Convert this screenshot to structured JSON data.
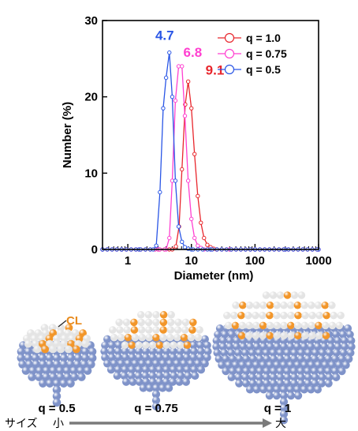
{
  "chart_data": {
    "type": "line",
    "xlabel": "Diameter (nm)",
    "ylabel": "Number (%)",
    "xscale": "log",
    "xlim": [
      0.4,
      1000
    ],
    "ylim": [
      0,
      30
    ],
    "x_ticks": [
      "1",
      "10",
      "100",
      "1000"
    ],
    "y_ticks": [
      "0",
      "10",
      "20",
      "30"
    ],
    "legend_position": "top-right",
    "series": [
      {
        "name": "q = 1.0",
        "color": "#e8262c",
        "peak_label": "9.1",
        "x": [
          0.4,
          0.8,
          1.5,
          3,
          5,
          5.7,
          6.4,
          7.1,
          8.0,
          8.9,
          10.0,
          11.2,
          12.6,
          14.1,
          15.8,
          17.8,
          20,
          22.4,
          25,
          40,
          100,
          300,
          1000
        ],
        "y": [
          0,
          0,
          0,
          0,
          0,
          0.4,
          3,
          10.5,
          19,
          22,
          18.5,
          12.5,
          7,
          3.5,
          1.5,
          0.6,
          0.3,
          0.1,
          0,
          0,
          0,
          0,
          0
        ]
      },
      {
        "name": "q = 0.75",
        "color": "#ff3fd0",
        "peak_label": "6.8",
        "x": [
          0.4,
          0.8,
          1.5,
          3,
          4.0,
          4.5,
          5.0,
          5.6,
          6.3,
          7.1,
          7.9,
          8.9,
          10.0,
          11.2,
          12.6,
          14.1,
          15.8,
          20,
          40,
          100,
          300,
          1000
        ],
        "y": [
          0,
          0,
          0,
          0,
          0,
          1.5,
          9,
          19.5,
          24,
          24,
          17.5,
          9,
          4,
          1.5,
          0.5,
          0.2,
          0,
          0,
          0,
          0,
          0,
          0
        ]
      },
      {
        "name": "q = 0.5",
        "color": "#2a56e6",
        "peak_label": "4.7",
        "x": [
          0.4,
          0.8,
          1.5,
          2.5,
          2.8,
          3.2,
          3.6,
          4.0,
          4.5,
          5.0,
          5.6,
          6.3,
          7.1,
          7.9,
          8.9,
          10,
          20,
          100,
          300,
          1000
        ],
        "y": [
          0,
          0,
          0,
          0,
          0.5,
          7.5,
          18.5,
          22.5,
          25.8,
          20,
          9,
          3,
          1,
          0.3,
          0.1,
          0,
          0,
          0,
          0,
          0
        ]
      }
    ]
  },
  "annotations": {
    "cl_label": "CL",
    "captions": [
      "q = 0.5",
      "q = 0.75",
      "q = 1"
    ],
    "size_label": "サイズ",
    "small_label": "小",
    "large_label": "大"
  },
  "colors": {
    "ball_blue": "#7f93c9",
    "ball_white": "#e4e4e4",
    "ball_orange": "#f2962a",
    "arrow_gray": "#7a7a7a"
  }
}
